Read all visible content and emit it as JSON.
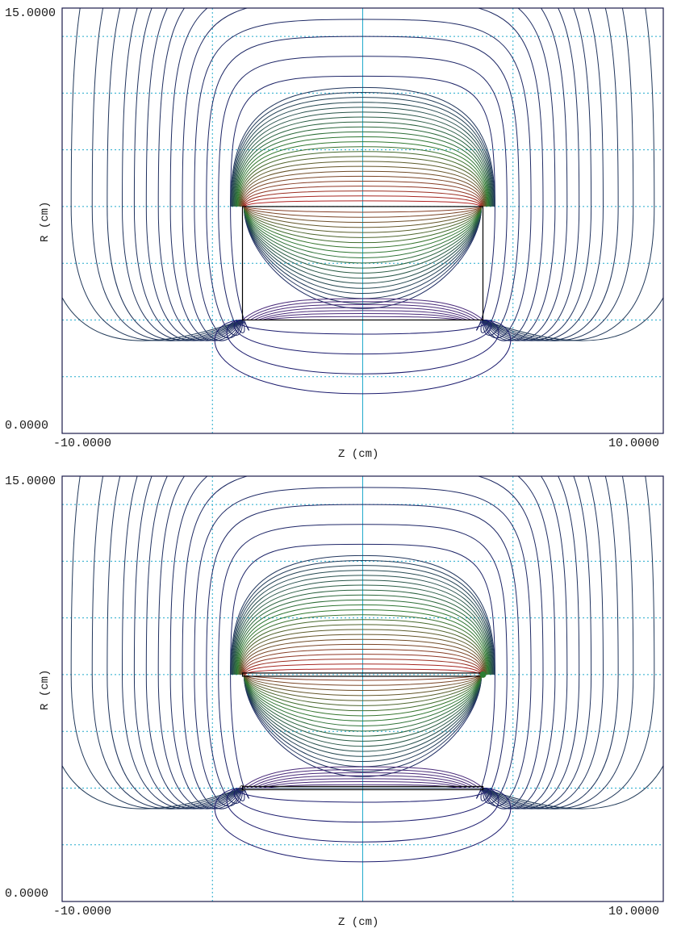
{
  "panels": [
    {
      "id": "top",
      "y_label": "R (cm)",
      "x_label": "Z (cm)",
      "y_min_label": "0.0000",
      "y_max_label": "15.0000",
      "x_min_label": "-10.0000",
      "x_max_label": "10.0000",
      "z_range": [
        -10,
        10
      ],
      "r_range": [
        0,
        15
      ],
      "grid_z": [
        -5,
        0,
        5
      ],
      "grid_r": [
        2,
        4,
        6,
        8,
        10,
        12,
        14
      ],
      "axis_z": 0,
      "structure": "rectangle",
      "body_z": [
        -4,
        4
      ],
      "body_r": [
        4,
        8
      ],
      "markers": []
    },
    {
      "id": "bottom",
      "y_label": "R (cm)",
      "x_label": "Z (cm)",
      "y_min_label": "0.0000",
      "y_max_label": "15.0000",
      "x_min_label": "-10.0000",
      "x_max_label": "10.0000",
      "z_range": [
        -10,
        10
      ],
      "r_range": [
        0,
        15
      ],
      "grid_z": [
        -5,
        0,
        5
      ],
      "grid_r": [
        2,
        4,
        6,
        8,
        10,
        12,
        14
      ],
      "axis_z": 0,
      "structure": "plates",
      "body_z": [
        -4,
        4
      ],
      "body_r": [
        4,
        8
      ],
      "markers": [
        {
          "z": 4,
          "r": 8,
          "type": "filled",
          "color": "#2e7d32"
        },
        {
          "z": -4,
          "r": 4,
          "type": "open",
          "color": "#444444"
        }
      ]
    }
  ],
  "colors": {
    "frame": "#1a1a4a",
    "grid": "#22aacc",
    "axis": "#22aacc",
    "structure": "#000000",
    "contour_low": "#1c1c6e",
    "contour_mid": "#2f7a2f",
    "contour_high": "#b02020"
  }
}
